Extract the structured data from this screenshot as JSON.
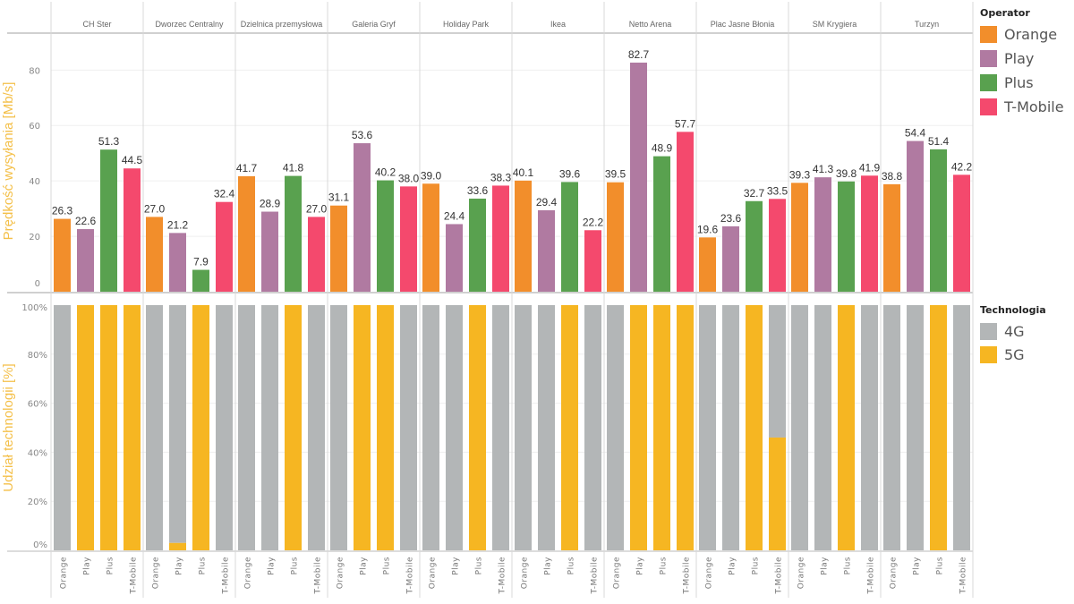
{
  "chart_data": [
    {
      "type": "bar",
      "title": "",
      "ylabel": "Prędkość wysyłania [Mb/s]",
      "xlabel": "",
      "ylim": [
        0,
        92
      ],
      "yticks": [
        "0",
        "20",
        "40",
        "60",
        "80"
      ],
      "ytick_values": [
        0,
        20,
        40,
        60,
        80
      ],
      "grid": true,
      "facets": [
        "CH Ster",
        "Dworzec Centralny",
        "Dzielnica przemysłowa",
        "Galeria Gryf",
        "Holiday Park",
        "Ikea",
        "Netto Arena",
        "Plac Jasne Błonia",
        "SM Krygiera",
        "Turzyn"
      ],
      "categories": [
        "Orange",
        "Play",
        "Plus",
        "T-Mobile"
      ],
      "series": [
        {
          "name": "CH Ster",
          "values": [
            26.3,
            22.6,
            51.3,
            44.5
          ],
          "labels": [
            "26.3",
            "22.6",
            "51.3",
            "44.5"
          ]
        },
        {
          "name": "Dworzec Centralny",
          "values": [
            27.0,
            21.2,
            7.9,
            32.4
          ],
          "labels": [
            "27.0",
            "21.2",
            "7.9",
            "32.4"
          ]
        },
        {
          "name": "Dzielnica przemysłowa",
          "values": [
            41.7,
            28.9,
            41.8,
            27.0
          ],
          "labels": [
            "41.7",
            "28.9",
            "41.8",
            "27.0"
          ]
        },
        {
          "name": "Galeria Gryf",
          "values": [
            31.1,
            53.6,
            40.2,
            38.0
          ],
          "labels": [
            "31.1",
            "53.6",
            "40.2",
            "38.0"
          ]
        },
        {
          "name": "Holiday Park",
          "values": [
            39.0,
            24.4,
            33.6,
            38.3
          ],
          "labels": [
            "39.0",
            "24.4",
            "33.6",
            "38.3"
          ]
        },
        {
          "name": "Ikea",
          "values": [
            40.1,
            29.4,
            39.6,
            22.2
          ],
          "labels": [
            "40.1",
            "29.4",
            "39.6",
            "22.2"
          ]
        },
        {
          "name": "Netto Arena",
          "values": [
            39.5,
            82.7,
            48.9,
            57.7
          ],
          "labels": [
            "39.5",
            "82.7",
            "48.9",
            "57.7"
          ]
        },
        {
          "name": "Plac Jasne Błonia",
          "values": [
            19.6,
            23.6,
            32.7,
            33.5
          ],
          "labels": [
            "19.6",
            "23.6",
            "32.7",
            "33.5"
          ]
        },
        {
          "name": "SM Krygiera",
          "values": [
            39.3,
            41.3,
            39.8,
            41.9
          ],
          "labels": [
            "39.3",
            "41.3",
            "39.8",
            "41.9"
          ]
        },
        {
          "name": "Turzyn",
          "values": [
            38.8,
            54.4,
            51.4,
            42.2
          ],
          "labels": [
            "38.8",
            "54.4",
            "51.4",
            "42.2"
          ]
        }
      ],
      "legend": {
        "title": "Operator",
        "placement": "top-right",
        "items": [
          {
            "label": "Orange",
            "color": "#F28E2B"
          },
          {
            "label": "Play",
            "color": "#B07AA1"
          },
          {
            "label": "Plus",
            "color": "#59A14F"
          },
          {
            "label": "T-Mobile",
            "color": "#F4496D"
          }
        ]
      }
    },
    {
      "type": "bar",
      "stacked": true,
      "title": "",
      "ylabel": "Udział technologii [%]",
      "xlabel": "",
      "ylim": [
        0,
        100
      ],
      "yticks": [
        "0%",
        "20%",
        "40%",
        "60%",
        "80%",
        "100%"
      ],
      "ytick_values": [
        0,
        20,
        40,
        60,
        80,
        100
      ],
      "grid": true,
      "facets": [
        "CH Ster",
        "Dworzec Centralny",
        "Dzielnica przemysłowa",
        "Galeria Gryf",
        "Holiday Park",
        "Ikea",
        "Netto Arena",
        "Plac Jasne Błonia",
        "SM Krygiera",
        "Turzyn"
      ],
      "categories": [
        "Orange",
        "Play",
        "Plus",
        "T-Mobile"
      ],
      "series_5G": [
        {
          "name": "CH Ster",
          "values": [
            0,
            100,
            100,
            100
          ]
        },
        {
          "name": "Dworzec Centralny",
          "values": [
            0,
            3,
            100,
            0
          ]
        },
        {
          "name": "Dzielnica przemysłowa",
          "values": [
            0,
            0,
            100,
            0
          ]
        },
        {
          "name": "Galeria Gryf",
          "values": [
            0,
            100,
            100,
            0
          ]
        },
        {
          "name": "Holiday Park",
          "values": [
            0,
            0,
            100,
            0
          ]
        },
        {
          "name": "Ikea",
          "values": [
            0,
            0,
            100,
            0
          ]
        },
        {
          "name": "Netto Arena",
          "values": [
            0,
            100,
            100,
            100
          ]
        },
        {
          "name": "Plac Jasne Błonia",
          "values": [
            0,
            0,
            100,
            46
          ]
        },
        {
          "name": "SM Krygiera",
          "values": [
            0,
            0,
            100,
            0
          ]
        },
        {
          "name": "Turzyn",
          "values": [
            0,
            0,
            100,
            0
          ]
        }
      ],
      "legend": {
        "title": "Technologia",
        "placement": "right",
        "items": [
          {
            "label": "4G",
            "color": "#B3B6B7"
          },
          {
            "label": "5G",
            "color": "#F6B622"
          }
        ]
      }
    }
  ],
  "styles": {
    "axis_title_color": "#F4C04A",
    "tick_color": "#888888",
    "label_color": "#333333",
    "grid_color": "#EFEFEF",
    "divider_color": "#D9D9D9"
  }
}
